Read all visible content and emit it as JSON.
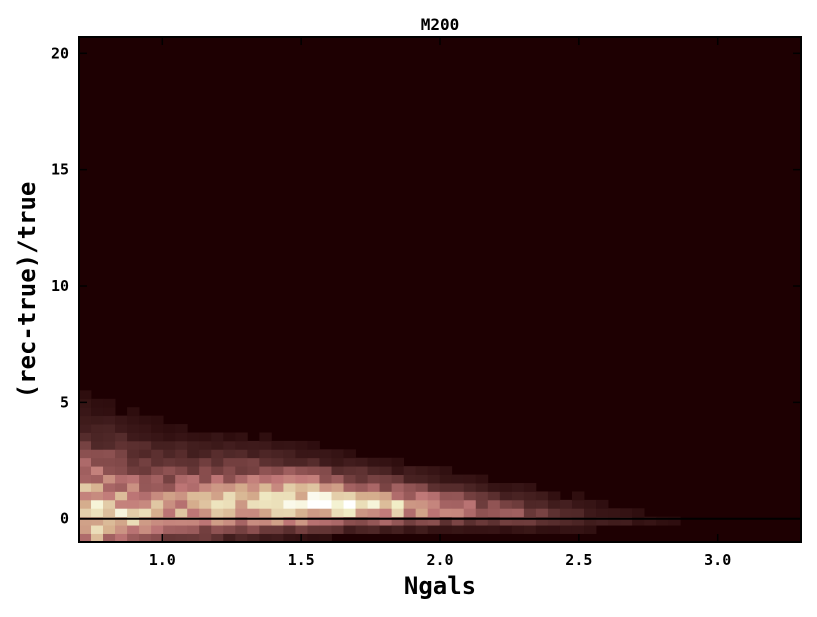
{
  "chart_data": {
    "type": "heatmap",
    "title": "M200",
    "xlabel": "Ngals",
    "ylabel": "(rec-true)/true",
    "xlim": [
      0.7,
      3.3
    ],
    "ylim": [
      -1.0,
      20.7
    ],
    "xticks": [
      1.0,
      1.5,
      2.0,
      2.5,
      3.0
    ],
    "yticks": [
      0,
      5,
      10,
      15,
      20
    ],
    "xtick_labels": [
      "1.0",
      "1.5",
      "2.0",
      "2.5",
      "3.0"
    ],
    "ytick_labels": [
      "0",
      "5",
      "10",
      "15",
      "20"
    ],
    "reference_line_y": 0,
    "x_bin_width": 0.0433,
    "y_bin_width": 0.362,
    "background_color": "#1e0002",
    "colormap": [
      "#1e0002",
      "#4a2424",
      "#8a4f4f",
      "#c07878",
      "#d6b08e",
      "#f2efc8",
      "#ffffff"
    ],
    "density_profile": {
      "description_of_values": "peak density vs x and the y-centre / spread of the distribution",
      "x": [
        0.75,
        1.0,
        1.25,
        1.5,
        1.75,
        2.0,
        2.25,
        2.5,
        2.75,
        3.0
      ],
      "peak": [
        0.85,
        0.6,
        0.75,
        1.0,
        0.8,
        0.55,
        0.35,
        0.2,
        0.08,
        0.02
      ],
      "y_center": [
        0.3,
        0.5,
        0.7,
        0.7,
        0.6,
        0.5,
        0.3,
        0.1,
        0.0,
        0.0
      ],
      "y_spread": [
        2.2,
        1.8,
        1.4,
        1.1,
        0.95,
        0.85,
        0.75,
        0.65,
        0.55,
        0.5
      ]
    }
  }
}
